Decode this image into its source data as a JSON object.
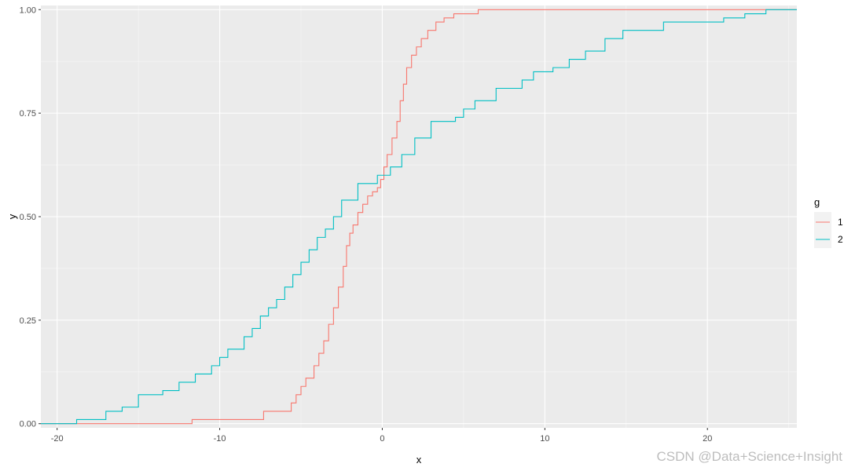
{
  "chart_data": {
    "type": "line",
    "step": true,
    "xlabel": "x",
    "ylabel": "y",
    "xlim": [
      -21,
      25.5
    ],
    "ylim": [
      -0.01,
      1.01
    ],
    "x_ticks": [
      -20,
      -10,
      0,
      10,
      20
    ],
    "x_tick_labels": [
      "-20",
      "-10",
      "0",
      "10",
      "20"
    ],
    "y_ticks": [
      0.0,
      0.25,
      0.5,
      0.75,
      1.0
    ],
    "y_tick_labels": [
      "0.00",
      "0.25",
      "0.50",
      "0.75",
      "1.00"
    ],
    "grid": true,
    "legend": {
      "title": "g",
      "position": "right"
    },
    "series": [
      {
        "name": "1",
        "color": "#F8766D",
        "x": [
          -21,
          -11.7,
          -7.3,
          -5.6,
          -5.3,
          -5.0,
          -4.7,
          -4.2,
          -3.9,
          -3.6,
          -3.3,
          -3.0,
          -2.7,
          -2.4,
          -2.2,
          -2.0,
          -1.8,
          -1.5,
          -1.2,
          -0.9,
          -0.6,
          -0.3,
          -0.1,
          0.1,
          0.3,
          0.6,
          0.9,
          1.1,
          1.3,
          1.5,
          1.8,
          2.1,
          2.4,
          2.8,
          3.3,
          3.8,
          4.4,
          5.9,
          25.5
        ],
        "y": [
          0.0,
          0.01,
          0.03,
          0.05,
          0.07,
          0.09,
          0.11,
          0.14,
          0.17,
          0.2,
          0.24,
          0.28,
          0.33,
          0.38,
          0.43,
          0.46,
          0.48,
          0.51,
          0.53,
          0.55,
          0.56,
          0.57,
          0.59,
          0.62,
          0.65,
          0.69,
          0.73,
          0.78,
          0.82,
          0.86,
          0.89,
          0.91,
          0.93,
          0.95,
          0.97,
          0.98,
          0.99,
          1.0,
          1.0
        ]
      },
      {
        "name": "2",
        "color": "#00BFC4",
        "x": [
          -21,
          -18.8,
          -17.0,
          -16.0,
          -15.0,
          -13.5,
          -12.5,
          -11.5,
          -10.5,
          -10.0,
          -9.5,
          -8.5,
          -8.0,
          -7.5,
          -7.0,
          -6.5,
          -6.0,
          -5.5,
          -5.0,
          -4.5,
          -4.0,
          -3.5,
          -3.0,
          -2.5,
          -1.5,
          -0.3,
          0.5,
          1.2,
          2.0,
          3.0,
          4.5,
          5.0,
          5.7,
          7.0,
          8.6,
          9.3,
          10.5,
          11.5,
          12.5,
          13.7,
          14.8,
          17.3,
          21.0,
          22.3,
          23.6,
          25.5
        ],
        "y": [
          0.0,
          0.01,
          0.03,
          0.04,
          0.07,
          0.08,
          0.1,
          0.12,
          0.14,
          0.16,
          0.18,
          0.21,
          0.23,
          0.26,
          0.28,
          0.3,
          0.33,
          0.36,
          0.39,
          0.42,
          0.45,
          0.47,
          0.5,
          0.54,
          0.58,
          0.6,
          0.62,
          0.65,
          0.69,
          0.73,
          0.74,
          0.76,
          0.78,
          0.81,
          0.83,
          0.85,
          0.86,
          0.88,
          0.9,
          0.93,
          0.95,
          0.97,
          0.98,
          0.99,
          1.0,
          1.0
        ]
      }
    ]
  },
  "watermark": "CSDN @Data+Science+Insight"
}
